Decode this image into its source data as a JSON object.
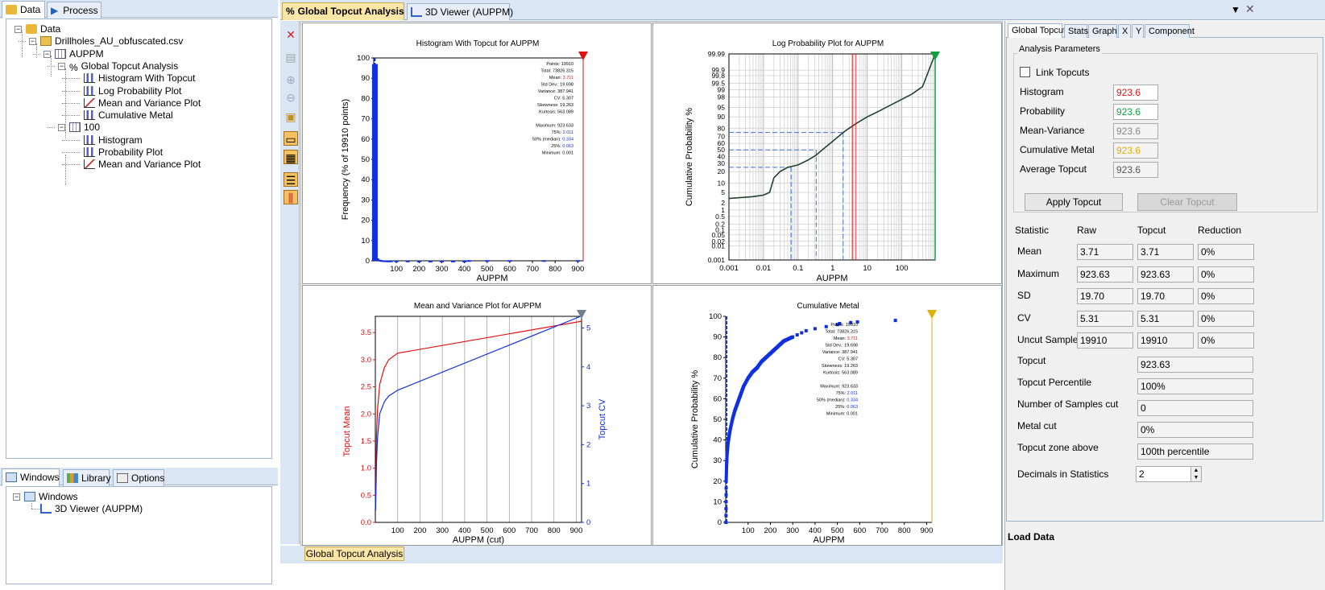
{
  "left_panel": {
    "tabs": [
      {
        "label": "Data"
      },
      {
        "label": "Process"
      }
    ],
    "tree": [
      {
        "label": "Data"
      },
      {
        "label": "Drillholes_AU_obfuscated.csv"
      },
      {
        "label": "AUPPM"
      },
      {
        "label": "Global Topcut Analysis"
      },
      {
        "label": "Histogram With Topcut"
      },
      {
        "label": "Log Probability Plot"
      },
      {
        "label": "Mean and Variance Plot"
      },
      {
        "label": "Cumulative Metal"
      },
      {
        "label": "100"
      },
      {
        "label": "Histogram"
      },
      {
        "label": "Probability Plot"
      },
      {
        "label": "Mean and Variance Plot"
      }
    ],
    "bottom_tabs": [
      {
        "label": "Windows"
      },
      {
        "label": "Library"
      },
      {
        "label": "Options"
      }
    ],
    "windows_tree": [
      {
        "label": "Windows"
      },
      {
        "label": "3D Viewer (AUPPM)"
      }
    ]
  },
  "doc_tabs": [
    {
      "label": "Global Topcut Analysis"
    },
    {
      "label": "3D Viewer (AUPPM)"
    }
  ],
  "bottom_doc_tab": {
    "label": "Global Topcut Analysis"
  },
  "stats_box": {
    "lines": [
      {
        "k": "Points",
        "v": "19910"
      },
      {
        "k": "Total",
        "v": "73826.315"
      },
      {
        "k": "Mean",
        "v": "3.711",
        "red": true
      },
      {
        "k": "Std Dev.",
        "v": "19.698"
      },
      {
        "k": "Variance",
        "v": "387.941"
      },
      {
        "k": "CV",
        "v": "5.307"
      },
      {
        "k": "Skewness",
        "v": "19.263"
      },
      {
        "k": "Kurtosis",
        "v": "563.089"
      },
      {
        "k": "",
        "v": ""
      },
      {
        "k": "Maximum",
        "v": "923.633"
      },
      {
        "k": "75%",
        "v": "2.011",
        "blue": true
      },
      {
        "k": "50% (median)",
        "v": "0.334",
        "blue": true
      },
      {
        "k": "25%",
        "v": "0.063",
        "blue": true
      },
      {
        "k": "Minimum",
        "v": "0.001"
      }
    ]
  },
  "plots": {
    "histogram": {
      "title": "Histogram With Topcut for AUPPM",
      "xlabel": "AUPPM",
      "ylabel": "Frequency (% of 19910 points)"
    },
    "logprob": {
      "title": "Log Probability Plot for AUPPM",
      "xlabel": "AUPPM",
      "ylabel": "Cumulative Probability %"
    },
    "meanvar": {
      "title": "Mean and Variance Plot for AUPPM",
      "xlabel": "AUPPM (cut)",
      "ylabel_left": "Topcut Mean",
      "ylabel_right": "Topcut CV"
    },
    "cummetal": {
      "title": "Cumulative Metal",
      "xlabel": "AUPPM",
      "ylabel": "Cumulative Probability %"
    }
  },
  "chart_data": [
    {
      "type": "bar",
      "title": "Histogram With Topcut for AUPPM",
      "xlabel": "AUPPM",
      "ylabel": "Frequency (% of 19910 points)",
      "xlim": [
        0,
        923.6
      ],
      "ylim": [
        0,
        100
      ],
      "xticks": [
        100,
        200,
        300,
        400,
        500,
        600,
        700,
        800,
        900
      ],
      "yticks": [
        0,
        10,
        20,
        30,
        40,
        50,
        60,
        70,
        80,
        90,
        100
      ],
      "x": [
        5,
        15,
        25,
        35,
        45,
        55,
        65,
        75,
        100,
        150,
        200,
        250,
        300,
        350,
        400,
        420,
        500,
        600,
        750,
        900
      ],
      "values": [
        97,
        1.2,
        0.5,
        0.3,
        0.2,
        0.15,
        0.1,
        0.1,
        0.1,
        0.08,
        0.06,
        0.05,
        0.05,
        0.04,
        0.04,
        0.3,
        0.3,
        0.3,
        0.3,
        0.3
      ],
      "topcut": 923.6
    },
    {
      "type": "line",
      "title": "Log Probability Plot for AUPPM",
      "xlabel": "AUPPM",
      "ylabel": "Cumulative Probability %",
      "x_scale": "log",
      "xlim": [
        0.001,
        923.6
      ],
      "xticks": [
        "0.001",
        "0.01",
        "0.1",
        "1",
        "10",
        "100"
      ],
      "yticks": [
        "0.001",
        "0.01",
        "0.02",
        "0.05",
        "0.1",
        "0.2",
        "0.5",
        "1",
        "2",
        "5",
        "10",
        "20",
        "30",
        "40",
        "50",
        "60",
        "70",
        "80",
        "90",
        "95",
        "98",
        "99",
        "99.5",
        "99.8",
        "99.9",
        "99.99"
      ],
      "series": [
        {
          "x": [
            0.001,
            0.005,
            0.01,
            0.015,
            0.02,
            0.03,
            0.05,
            0.08,
            0.1,
            0.2,
            0.334,
            0.5,
            1,
            2.011,
            3,
            5,
            10,
            20,
            50,
            100,
            200,
            400,
            923.6
          ],
          "y": [
            3,
            3.5,
            4,
            5,
            14,
            20,
            25,
            27,
            28,
            35,
            42,
            50,
            63,
            75,
            80,
            85,
            90,
            93,
            96,
            97.5,
            98.5,
            99.3,
            99.99
          ]
        }
      ],
      "quartile_lines": [
        0.063,
        0.334,
        2.011
      ],
      "topcut": 923.6,
      "mean": 3.711
    },
    {
      "type": "line",
      "title": "Mean and Variance Plot for AUPPM",
      "xlabel": "AUPPM (cut)",
      "ylabel": "Topcut Mean",
      "y2label": "Topcut CV",
      "xlim": [
        0,
        923.6
      ],
      "ylim": [
        0,
        3.8
      ],
      "y2lim": [
        0,
        5.3
      ],
      "xticks": [
        100,
        200,
        300,
        400,
        500,
        600,
        700,
        800,
        900
      ],
      "yticks": [
        0,
        0.5,
        1,
        1.5,
        2,
        2.5,
        3,
        3.5
      ],
      "y2ticks": [
        0,
        1,
        2,
        3,
        4,
        5
      ],
      "series": [
        {
          "name": "Topcut Mean",
          "x": [
            1,
            5,
            10,
            20,
            40,
            60,
            100,
            923.6
          ],
          "values": [
            0.3,
            1.6,
            2.1,
            2.55,
            2.85,
            3.0,
            3.12,
            3.71
          ]
        },
        {
          "name": "Topcut CV",
          "x": [
            1,
            5,
            10,
            20,
            40,
            60,
            100,
            923.6
          ],
          "values": [
            0.3,
            1.5,
            2.2,
            2.8,
            3.1,
            3.25,
            3.4,
            5.31
          ]
        }
      ]
    },
    {
      "type": "scatter",
      "title": "Cumulative Metal",
      "xlabel": "AUPPM",
      "ylabel": "Cumulative Probability %",
      "xlim": [
        0,
        923.6
      ],
      "ylim": [
        0,
        100
      ],
      "xticks": [
        100,
        200,
        300,
        400,
        500,
        600,
        700,
        800,
        900
      ],
      "yticks": [
        0,
        10,
        20,
        30,
        40,
        50,
        60,
        70,
        80,
        90,
        100
      ],
      "x": [
        1,
        2,
        4,
        6,
        10,
        15,
        20,
        30,
        40,
        50,
        60,
        70,
        80,
        100,
        120,
        140,
        160,
        180,
        200,
        220,
        240,
        260,
        280,
        300,
        320,
        340,
        360,
        400,
        450,
        500,
        510,
        560,
        590,
        760
      ],
      "values": [
        0,
        20,
        28,
        33,
        38,
        42,
        45,
        50,
        54,
        57,
        60,
        63,
        66,
        70,
        73,
        75,
        78,
        80,
        82,
        84,
        86,
        88,
        89,
        90,
        91,
        92,
        93,
        94,
        95,
        96,
        96.5,
        97,
        97.3,
        98
      ],
      "topcut": 923.6
    }
  ],
  "right_panel": {
    "tabs": [
      {
        "label": "Global Topcut"
      },
      {
        "label": "Stats"
      },
      {
        "label": "Graph"
      },
      {
        "label": "X"
      },
      {
        "label": "Y"
      },
      {
        "label": "Component"
      }
    ],
    "group_title": "Analysis Parameters",
    "link_topcuts": "Link Topcuts",
    "params": [
      {
        "label": "Histogram",
        "value": "923.6",
        "color": "#e01010"
      },
      {
        "label": "Probability",
        "value": "923.6",
        "color": "#10a040"
      },
      {
        "label": "Mean-Variance",
        "value": "923.6",
        "color": "#888888"
      },
      {
        "label": "Cumulative Metal",
        "value": "923.6",
        "color": "#e0b000"
      },
      {
        "label": "Average Topcut",
        "value": "923.6",
        "color": "#555555"
      }
    ],
    "apply_button": "Apply Topcut",
    "clear_button": "Clear Topcut",
    "stat_headers": {
      "statistic": "Statistic",
      "raw": "Raw",
      "topcut": "Topcut",
      "reduction": "Reduction"
    },
    "stats": [
      {
        "label": "Mean",
        "raw": "3.71",
        "topcut": "3.71",
        "reduction": "0%"
      },
      {
        "label": "Maximum",
        "raw": "923.63",
        "topcut": "923.63",
        "reduction": "0%"
      },
      {
        "label": "SD",
        "raw": "19.70",
        "topcut": "19.70",
        "reduction": "0%"
      },
      {
        "label": "CV",
        "raw": "5.31",
        "topcut": "5.31",
        "reduction": "0%"
      },
      {
        "label": "Uncut Samples",
        "raw": "19910",
        "topcut": "19910",
        "reduction": "0%"
      }
    ],
    "singles": [
      {
        "label": "Topcut",
        "value": "923.63"
      },
      {
        "label": "Topcut Percentile",
        "value": "100%"
      },
      {
        "label": "Number of Samples cut",
        "value": "0"
      },
      {
        "label": "Metal cut",
        "value": "0%"
      },
      {
        "label": "Topcut zone above",
        "value": "100th percentile"
      }
    ],
    "decimals_label": "Decimals in Statistics",
    "decimals_value": "2",
    "load_data": "Load Data"
  },
  "colors": {
    "accent": "#dbe6f4",
    "topcut_red": "#e01010",
    "prob_green": "#10a040",
    "metal_yellow": "#e0b000",
    "data_blue": "#1030e0"
  }
}
